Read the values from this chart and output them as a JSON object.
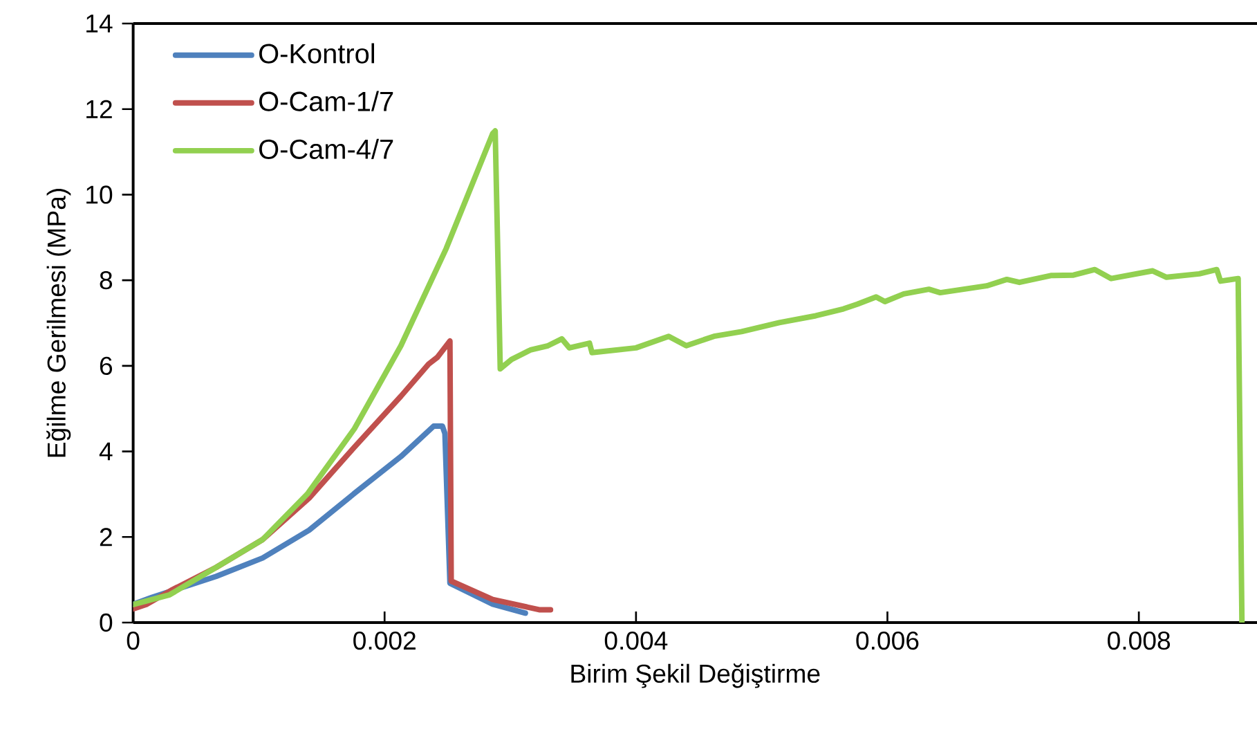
{
  "chart_data": {
    "type": "line",
    "xlabel": "Birim Şekil Değiştirme",
    "ylabel": "Eğilme Gerilmesi (MPa)",
    "xlim": [
      0,
      0.00894
    ],
    "ylim": [
      0,
      14
    ],
    "xticks": [
      0,
      0.002,
      0.004,
      0.006,
      0.008
    ],
    "yticks": [
      0,
      2,
      4,
      6,
      8,
      10,
      12,
      14
    ],
    "legend": "top left",
    "series": [
      {
        "name": "O-Kontrol",
        "color": "#4f81bd",
        "x": [
          0,
          0.00015,
          0.00066,
          0.00103,
          0.0014,
          0.00176,
          0.00213,
          0.00239,
          0.00246,
          0.00248,
          0.00252,
          0.00286,
          0.00312
        ],
        "values": [
          0.43,
          0.59,
          1.08,
          1.51,
          2.16,
          3.02,
          3.88,
          4.59,
          4.59,
          4.42,
          0.92,
          0.43,
          0.22
        ]
      },
      {
        "name": "O-Cam-1/7",
        "color": "#c0504d",
        "x": [
          0,
          0.00011,
          0.0003,
          0.00066,
          0.00103,
          0.0014,
          0.00176,
          0.00213,
          0.00235,
          0.00242,
          0.00252,
          0.00253,
          0.00286,
          0.00323,
          0.00332
        ],
        "values": [
          0.32,
          0.43,
          0.75,
          1.29,
          1.94,
          2.91,
          4.1,
          5.29,
          6.04,
          6.2,
          6.58,
          0.97,
          0.54,
          0.3,
          0.3
        ]
      },
      {
        "name": "O-Cam-4/7",
        "color": "#92d050",
        "x": [
          0,
          0.00029,
          0.00066,
          0.00103,
          0.00139,
          0.00176,
          0.00213,
          0.00249,
          0.00286,
          0.00288,
          0.00292,
          0.00301,
          0.00316,
          0.0033,
          0.00341,
          0.00347,
          0.00363,
          0.00365,
          0.004,
          0.00426,
          0.0044,
          0.00462,
          0.00484,
          0.00514,
          0.00543,
          0.00565,
          0.00576,
          0.00591,
          0.00598,
          0.00613,
          0.00633,
          0.00642,
          0.00679,
          0.00695,
          0.00705,
          0.0073,
          0.00748,
          0.00765,
          0.00778,
          0.00811,
          0.00822,
          0.00848,
          0.00862,
          0.00865,
          0.00879,
          0.00882
        ],
        "values": [
          0.42,
          0.65,
          1.29,
          1.94,
          3.02,
          4.53,
          6.47,
          8.74,
          11.43,
          11.49,
          5.93,
          6.15,
          6.37,
          6.47,
          6.63,
          6.42,
          6.53,
          6.31,
          6.42,
          6.69,
          6.47,
          6.69,
          6.8,
          7.01,
          7.17,
          7.33,
          7.44,
          7.61,
          7.5,
          7.68,
          7.79,
          7.71,
          7.87,
          8.02,
          7.95,
          8.11,
          8.12,
          8.25,
          8.04,
          8.22,
          8.07,
          8.15,
          8.25,
          7.98,
          8.04,
          0
        ]
      }
    ]
  }
}
